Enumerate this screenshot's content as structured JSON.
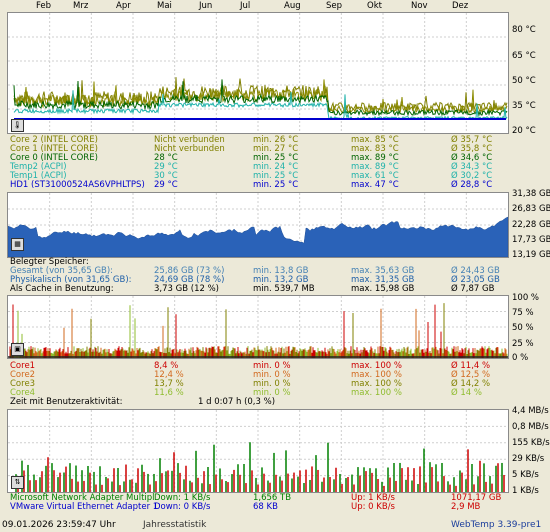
{
  "months": [
    "Feb",
    "Mrz",
    "Apr",
    "Mai",
    "Jun",
    "Jul",
    "Aug",
    "Sep",
    "Okt",
    "Nov",
    "Dez"
  ],
  "temperature": {
    "axis": [
      "80 °C",
      "65 °C",
      "50 °C",
      "35 °C",
      "20 °C"
    ],
    "rows": [
      {
        "name": "Core 2 (INTEL CORE)",
        "cur": "Nicht verbunden",
        "min": "min. 26 °C",
        "max": "max. 85 °C",
        "avg": "Ø 35,7 °C",
        "color": "#808000"
      },
      {
        "name": "Core 1 (INTEL CORE)",
        "cur": "Nicht verbunden",
        "min": "min. 27 °C",
        "max": "max. 83 °C",
        "avg": "Ø 35,8 °C",
        "color": "#808000"
      },
      {
        "name": "Core 0 (INTEL CORE)",
        "cur": "28 °C",
        "min": "min. 25 °C",
        "max": "max. 89 °C",
        "avg": "Ø 34,6 °C",
        "color": "#006400"
      },
      {
        "name": "Temp2 (ACPI)",
        "cur": "29 °C",
        "min": "min. 24 °C",
        "max": "max. 89 °C",
        "avg": "Ø 34,3 °C",
        "color": "#20b2aa"
      },
      {
        "name": "Temp1 (ACPI)",
        "cur": "30 °C",
        "min": "min. 25 °C",
        "max": "max. 61 °C",
        "avg": "Ø 30,2 °C",
        "color": "#20b2aa"
      },
      {
        "name": "HD1 (ST31000524AS6VPHLTPS)",
        "cur": "29 °C",
        "min": "min. 25 °C",
        "max": "max. 47 °C",
        "avg": "Ø 28,8 °C",
        "color": "#0000cd"
      }
    ]
  },
  "memory": {
    "axis": [
      "31,38 GB",
      "26,83 GB",
      "22,28 GB",
      "17,73 GB",
      "13,19 GB"
    ],
    "heading": "Belegter Speicher:",
    "rows": [
      {
        "name": "Gesamt (von 35,65 GB):",
        "cur": "25,86 GB (73 %)",
        "min": "min. 13,8 GB",
        "max": "max. 35,63 GB",
        "avg": "Ø 24,43 GB",
        "color": "#4682b4"
      },
      {
        "name": "Physikalisch (von 31,65 GB):",
        "cur": "24,69 GB (78 %)",
        "min": "min. 13,2 GB",
        "max": "max. 31,35 GB",
        "avg": "Ø 23,05 GB",
        "color": "#1e5fa8"
      },
      {
        "name": "Als Cache in Benutzung:",
        "cur": "3,73 GB (12 %)",
        "min": "min. 539,7 MB",
        "max": "max. 15,98 GB",
        "avg": "Ø 7,87 GB",
        "color": "#000000"
      }
    ]
  },
  "cpu": {
    "axis": [
      "100 %",
      "75 %",
      "50 %",
      "25 %",
      "0 %"
    ],
    "rows": [
      {
        "name": "Core1",
        "cur": "8,4 %",
        "min": "min. 0 %",
        "max": "max. 100 %",
        "avg": "Ø 11,4 %",
        "color": "#cc0000"
      },
      {
        "name": "Core2",
        "cur": "12,4 %",
        "min": "min. 0 %",
        "max": "max. 100 %",
        "avg": "Ø 12,5 %",
        "color": "#d2691e"
      },
      {
        "name": "Core3",
        "cur": "13,7 %",
        "min": "min. 0 %",
        "max": "max. 100 %",
        "avg": "Ø 14,2 %",
        "color": "#808000"
      },
      {
        "name": "Core4",
        "cur": "11,6 %",
        "min": "min. 0 %",
        "max": "max. 100 %",
        "avg": "Ø 14 %",
        "color": "#8fbc2f"
      }
    ],
    "activity_label": "Zeit mit Benutzeraktivität:",
    "activity_value": "1 d 0:07 h (0,3 %)"
  },
  "network": {
    "axis": [
      "4,4 MB/s",
      "0,8 MB/s",
      "155 KB/s",
      "29 KB/s",
      "5 KB/s",
      "1 KB/s"
    ],
    "rows": [
      {
        "name": "Microsoft Network Adapter Multipl",
        "down": "Down: 1 KB/s",
        "total_down": "1,656 TB",
        "up": "Up: 1 KB/s",
        "total_up": "1071,17 GB",
        "color": "#008000",
        "up_color": "#cc0000"
      },
      {
        "name": "VMware Virtual Ethernet Adapter 1",
        "down": "Down: 0 KB/s",
        "total_down": "68 KB",
        "up": "Up: 0 KB/s",
        "total_up": "2,9 MB",
        "color": "#0000cd",
        "up_color": "#cc0000"
      }
    ]
  },
  "footer": {
    "datetime": "09.01.2026 23:59:47 Uhr",
    "period": "Jahresstatistik",
    "version": "WebTemp 3.39-pre1"
  }
}
